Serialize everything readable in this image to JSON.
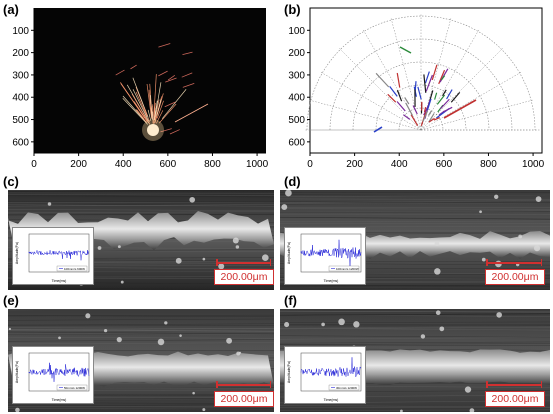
{
  "panels": {
    "a": {
      "label": "(a)"
    },
    "b": {
      "label": "(b)"
    },
    "c": {
      "label": "(c)",
      "legend": "100mm/s 600W"
    },
    "d": {
      "label": "(d)",
      "legend": "100mm/s 1200W"
    },
    "e": {
      "label": "(e)",
      "legend": "50mm/s 1200W"
    },
    "f": {
      "label": "(f)",
      "legend": "30mm/s 1200W"
    }
  },
  "axes": {
    "y_ticks": [
      "100",
      "200",
      "300",
      "400",
      "500",
      "600"
    ],
    "x_ticks": [
      "0",
      "200",
      "400",
      "600",
      "800",
      "1000"
    ]
  },
  "inset_axes": {
    "ylabel": "Amplitude(Pa)",
    "xlabel": "Time(ms)"
  },
  "scale_bar": {
    "text": "200.00μm"
  },
  "colors": {
    "spark": "#ffe8c0",
    "scale": "#d03030",
    "signal": "#2a2ad8"
  }
}
